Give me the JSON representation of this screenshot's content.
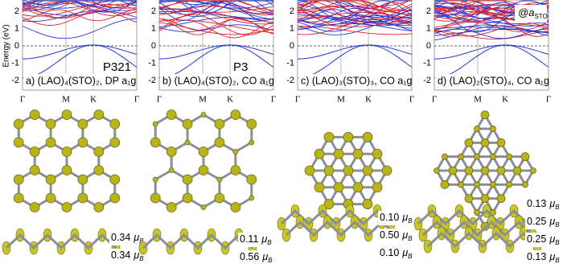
{
  "energy_axis": {
    "label": "Energy (eV)",
    "ticks": [
      2,
      1,
      0,
      -1,
      -2
    ]
  },
  "kpath": [
    "Γ",
    "M",
    "K",
    "Γ"
  ],
  "moment_symbol": "μ",
  "moment_symbol_sub": "B",
  "panels": [
    {
      "label": "a) (LAO)₄(STO)₂, DP a₁g",
      "group": "P321",
      "moments": [
        "0.34",
        "0.34"
      ]
    },
    {
      "label": "b) (LAO)₄(STO)₂, CO a₁g",
      "group": "P3",
      "moments": [
        "0.11",
        "0.56"
      ]
    },
    {
      "label": "c) (LAO)₃(STO)₃, CO a₁g",
      "moments": [
        "0.10",
        "0.50",
        "0.10"
      ]
    },
    {
      "label": "d) (LAO)₂(STO)₄, CO a₁g",
      "strain": "@a",
      "strain_sub": "STO",
      "moments": [
        "0.13",
        "0.25",
        "0.25",
        "0.13"
      ]
    }
  ]
}
